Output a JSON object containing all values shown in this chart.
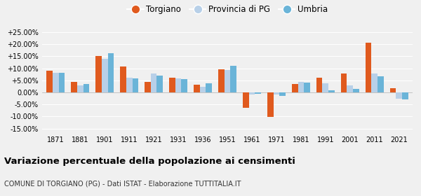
{
  "years": [
    1871,
    1881,
    1901,
    1911,
    1921,
    1931,
    1936,
    1951,
    1961,
    1971,
    1981,
    1991,
    2001,
    2011,
    2021
  ],
  "torgiano": [
    9.0,
    4.5,
    15.0,
    10.8,
    4.5,
    6.0,
    3.3,
    9.5,
    -6.5,
    -10.2,
    3.5,
    6.0,
    7.8,
    20.8,
    1.8
  ],
  "provincia_pg": [
    8.0,
    2.8,
    14.0,
    6.2,
    7.8,
    5.7,
    2.3,
    9.3,
    -0.8,
    -1.0,
    4.5,
    3.8,
    2.8,
    7.8,
    -2.5
  ],
  "umbria": [
    8.2,
    3.5,
    16.2,
    5.8,
    7.0,
    5.5,
    3.8,
    11.0,
    -0.5,
    -1.5,
    4.0,
    1.0,
    1.5,
    6.8,
    -2.8
  ],
  "color_torgiano": "#e05a1e",
  "color_provincia": "#b8d0e8",
  "color_umbria": "#6ab4d8",
  "title": "Variazione percentuale della popolazione ai censimenti",
  "subtitle": "COMUNE DI TORGIANO (PG) - Dati ISTAT - Elaborazione TUTTITALIA.IT",
  "legend_labels": [
    "Torgiano",
    "Provincia di PG",
    "Umbria"
  ],
  "ylim": [
    -17,
    27
  ],
  "yticks": [
    -15,
    -10,
    -5,
    0,
    5,
    10,
    15,
    20,
    25
  ],
  "bg_color": "#f0f0f0"
}
